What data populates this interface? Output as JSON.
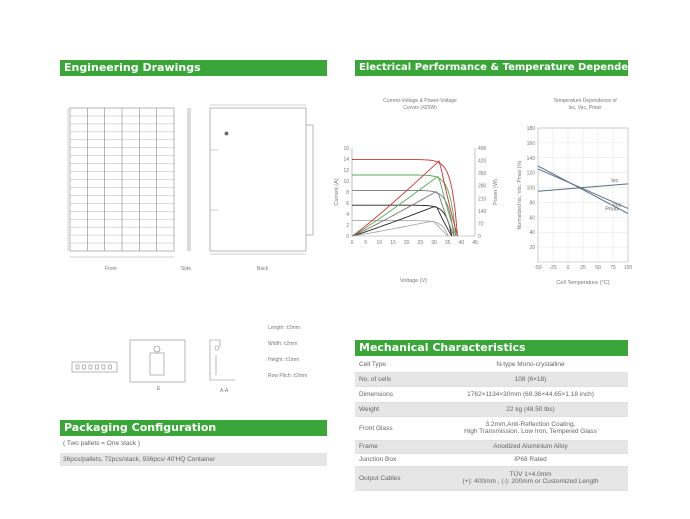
{
  "headers": {
    "engineering": "Engineering Drawings",
    "electrical": "Electrical Performance & Temperature Dependence",
    "mechanical": "Mechanical Characteristics",
    "packaging": "Packaging Configuration"
  },
  "drawings": {
    "front_label": "Front",
    "side_label": "Side",
    "back_label": "Back",
    "section_e_label": "E",
    "section_aa_label": "A-A",
    "frame_dims": {
      "length": "Length: ±2mm",
      "width": "Width: ±2mm",
      "height": "Height: ±1mm",
      "row_pitch": "Row Pitch: ±2mm"
    }
  },
  "iv_chart": {
    "title_line1": "Current-Voltage & Power-Voltage",
    "title_line2": "Curves (420W)",
    "xlabel": "Voltage (V)",
    "ylabel_left": "Current (A)",
    "ylabel_right": "Power (W)",
    "x_ticks": [
      "0",
      "5",
      "10",
      "15",
      "20",
      "25",
      "30",
      "35",
      "40",
      "45"
    ],
    "y_left_ticks": [
      "0",
      "2",
      "4",
      "6",
      "8",
      "10",
      "12",
      "14",
      "16"
    ],
    "y_right_ticks": [
      "0",
      "70",
      "140",
      "210",
      "280",
      "350",
      "420",
      "490"
    ]
  },
  "temp_chart": {
    "title_line1": "Temperature Dependence of",
    "title_line2": "Isc, Voc, Pmax",
    "xlabel": "Cell Temperature (°C)",
    "ylabel": "Normalized Isc, Voc, Pmax (%)",
    "x_ticks": [
      "-50",
      "-25",
      "0",
      "25",
      "50",
      "75",
      "100"
    ],
    "y_ticks": [
      "20",
      "40",
      "60",
      "80",
      "100",
      "120",
      "140",
      "160",
      "180"
    ],
    "labels": {
      "isc": "Isc",
      "voc": "Voc",
      "pmax": "Pmax"
    }
  },
  "chart_data": [
    {
      "type": "line",
      "title": "Current-Voltage & Power-Voltage Curves (420W)",
      "xlabel": "Voltage (V)",
      "ylabel": "Current (A)",
      "ylabel_right": "Power (W)",
      "xlim": [
        0,
        45
      ],
      "ylim": [
        0,
        16
      ],
      "ylim_right": [
        0,
        490
      ],
      "grid": false,
      "iv_series": [
        {
          "color": "#cc3333",
          "isc": 13.9,
          "voc": 38.6
        },
        {
          "color": "#55aa55",
          "isc": 11.1,
          "voc": 38.0
        },
        {
          "color": "#777777",
          "isc": 8.3,
          "voc": 37.3
        },
        {
          "color": "#222222",
          "isc": 5.6,
          "voc": 36.5
        },
        {
          "color": "#aaaaaa",
          "isc": 2.8,
          "voc": 35.2
        }
      ],
      "pv_series": [
        {
          "color": "#cc3333",
          "pmax": 420,
          "vmp": 32.0
        },
        {
          "color": "#55aa55",
          "pmax": 336,
          "vmp": 31.7
        },
        {
          "color": "#777777",
          "pmax": 252,
          "vmp": 31.3
        },
        {
          "color": "#222222",
          "pmax": 168,
          "vmp": 30.8
        },
        {
          "color": "#aaaaaa",
          "pmax": 84,
          "vmp": 29.8
        }
      ]
    },
    {
      "type": "line",
      "title": "Temperature Dependence of Isc, Voc, Pmax",
      "xlabel": "Cell Temperature (°C)",
      "ylabel": "Normalized Isc, Voc, Pmax (%)",
      "xlim": [
        -50,
        100
      ],
      "ylim": [
        0,
        180
      ],
      "grid": true,
      "series": [
        {
          "name": "Isc",
          "x": [
            -50,
            100
          ],
          "y": [
            95,
            105
          ],
          "color": "#5a6e86"
        },
        {
          "name": "Voc",
          "x": [
            -50,
            100
          ],
          "y": [
            125,
            72
          ],
          "color": "#5a6e86"
        },
        {
          "name": "Pmax",
          "x": [
            -50,
            100
          ],
          "y": [
            129,
            65
          ],
          "color": "#5a6e86"
        }
      ]
    }
  ],
  "mechanical": {
    "rows": [
      {
        "label": "Cell  Type",
        "value": "N-type Mono-crystalline"
      },
      {
        "label": "No. of cells",
        "value": "108 (6×18)"
      },
      {
        "label": "Dimensions",
        "value": "1762×1134×30mm (69.36×44.65×1.18 inch)"
      },
      {
        "label": "Weight",
        "value": "22 kg (48.50 lbs)"
      },
      {
        "label": "Front Glass",
        "value": "3.2mm,Anti-Reflection Coating,",
        "value2": "High Transmission, Low Iron, Tempered Glass"
      },
      {
        "label": "Frame",
        "value": "Anodized Aluminium Alloy"
      },
      {
        "label": "Junction Box",
        "value": "IP68 Rated"
      },
      {
        "label": "Output Cables",
        "value": "TÜV 1×4.0mm",
        "value2": "(+): 400mm , (-): 200mm or Customized Length"
      }
    ]
  },
  "packaging": {
    "note": "( Two pallets = One stack )",
    "config": "36pcs/pallets, 72pcs/stack, 936pcs/ 40'HQ Container"
  }
}
